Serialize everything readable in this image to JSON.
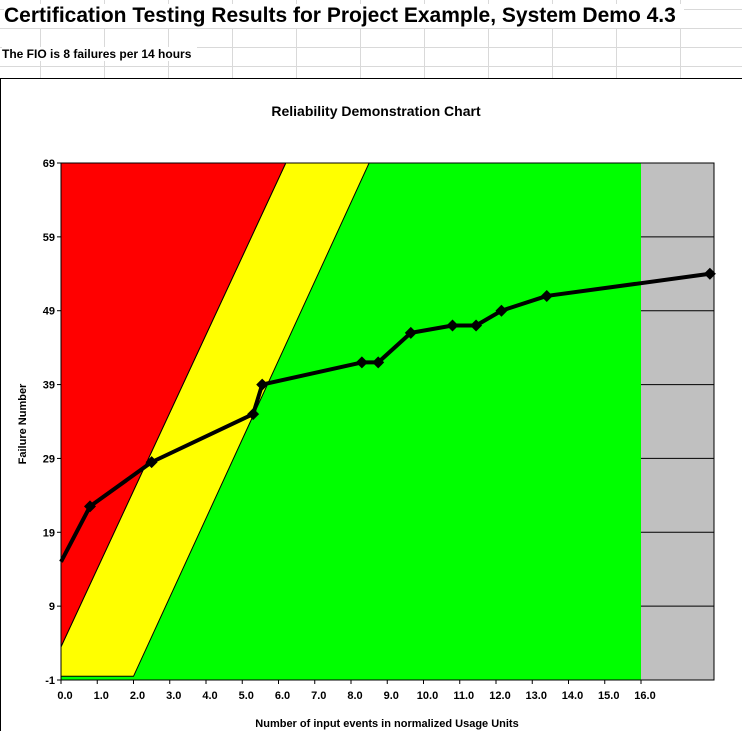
{
  "sheet": {
    "title": "Certification Testing Results for Project Example, System Demo 4.3",
    "subtitle": "The FIO is 8 failures per 14 hours"
  },
  "chart_data": {
    "type": "line",
    "title": "Reliability Demonstration Chart",
    "xlabel": "Number of input events in normalized Usage Units",
    "ylabel": "Failure Number",
    "xlim": [
      0,
      18
    ],
    "ylim": [
      -1,
      69
    ],
    "x_ticks": [
      "0.0",
      "1.0",
      "2.0",
      "3.0",
      "4.0",
      "5.0",
      "6.0",
      "7.0",
      "8.0",
      "9.0",
      "10.0",
      "11.0",
      "12.0",
      "13.0",
      "14.0",
      "15.0",
      "16.0"
    ],
    "y_ticks": [
      69,
      59,
      49,
      39,
      29,
      19,
      9,
      -1
    ],
    "regions": {
      "reject": {
        "color": "#ff0000",
        "boundary": [
          [
            0,
            3.5
          ],
          [
            6.2,
            69
          ]
        ]
      },
      "continue": {
        "color": "#ffff00",
        "boundary": [
          [
            0,
            3.5
          ],
          [
            6.2,
            69
          ]
        ],
        "lower_boundary": [
          [
            0,
            -0.5
          ],
          [
            2.0,
            -0.5
          ],
          [
            8.5,
            69
          ]
        ]
      },
      "accept": {
        "color": "#00ff00"
      },
      "beyond": {
        "color": "#c0c0c0",
        "from_x": 16.0
      }
    },
    "series": [
      {
        "x": [
          0.0,
          0.8,
          2.5,
          5.3,
          5.55,
          8.3,
          8.75,
          9.65,
          10.8,
          11.45,
          12.15,
          13.4,
          17.9
        ],
        "y": [
          15,
          22.5,
          28.5,
          35,
          39,
          42,
          42,
          46,
          47,
          47,
          49,
          51,
          54
        ],
        "color": "#000000"
      }
    ]
  }
}
